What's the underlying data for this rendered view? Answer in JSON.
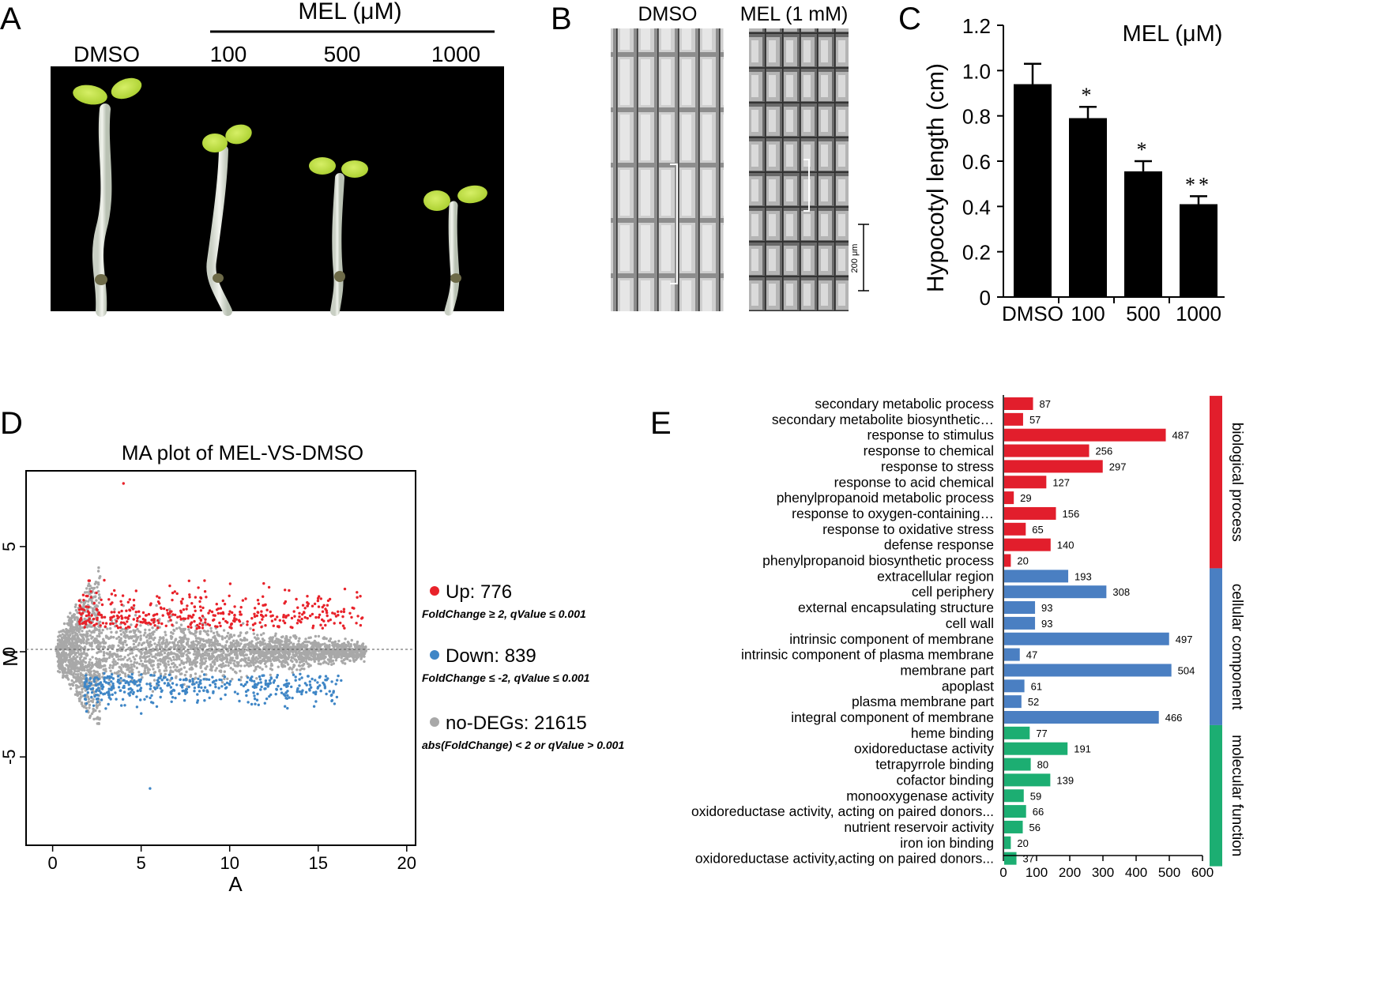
{
  "panel_a": {
    "letter": "A",
    "header": "MEL (μM)",
    "labels": [
      "DMSO",
      "100",
      "500",
      "1000"
    ]
  },
  "panel_b": {
    "letter": "B",
    "labels": [
      "DMSO",
      "MEL (1 mM)"
    ],
    "scale_label": "200 μm"
  },
  "panel_c": {
    "letter": "C",
    "legend": "MEL (μM)"
  },
  "panel_d": {
    "letter": "D",
    "legend": {
      "up": {
        "text": "Up: 776",
        "criteria": "FoldChange ≥ 2, qValue ≤ 0.001",
        "color": "#e8222a"
      },
      "down": {
        "text": "Down: 839",
        "criteria": "FoldChange ≤ -2, qValue ≤ 0.001",
        "color": "#3f86c6"
      },
      "none": {
        "text": "no-DEGs: 21615",
        "criteria": "abs(FoldChange) < 2 or qValue > 0.001",
        "color": "#a8a8a8"
      }
    }
  },
  "panel_e": {
    "letter": "E",
    "group_labels": [
      "biological process",
      "cellular component",
      "molecular function"
    ]
  },
  "chart_data": [
    {
      "type": "bar",
      "id": "C",
      "title": "MEL (μM)",
      "xlabel": "",
      "ylabel": "Hypocotyl length (cm)",
      "categories": [
        "DMSO",
        "100",
        "500",
        "1000"
      ],
      "values": [
        0.94,
        0.79,
        0.555,
        0.41
      ],
      "errors": [
        0.09,
        0.05,
        0.045,
        0.035
      ],
      "significance": [
        "",
        "*",
        "*",
        "**"
      ],
      "ylim": [
        0,
        1.2
      ],
      "yticks": [
        "0",
        "0.2",
        "0.4",
        "0.6",
        "0.8",
        "1.0",
        "1.2"
      ],
      "bar_color": "#000000"
    },
    {
      "type": "scatter",
      "id": "D",
      "title": "MA plot of MEL-VS-DMSO",
      "xlabel": "A",
      "ylabel": "M",
      "xlim": [
        -1.5,
        20.5
      ],
      "ylim": [
        -9.2,
        8.6
      ],
      "xticks": [
        "0",
        "5",
        "10",
        "15",
        "20"
      ],
      "yticks": [
        "-5",
        "0",
        "5"
      ],
      "series": [
        {
          "name": "Up",
          "count": 776,
          "color": "#e8222a"
        },
        {
          "name": "Down",
          "count": 839,
          "color": "#3f86c6"
        },
        {
          "name": "no-DEGs",
          "count": 21615,
          "color": "#a8a8a8"
        }
      ]
    },
    {
      "type": "bar",
      "id": "E",
      "orientation": "horizontal",
      "xlim": [
        0,
        600
      ],
      "xticks": [
        "0",
        "100",
        "200",
        "300",
        "400",
        "500",
        "600"
      ],
      "categories": [
        "secondary metabolic process",
        "secondary metabolite biosynthetic…",
        "response to stimulus",
        "response to chemical",
        "response to stress",
        "response to acid chemical",
        "phenylpropanoid metabolic process",
        "response to oxygen-containing…",
        "response to oxidative stress",
        "defense response",
        "phenylpropanoid biosynthetic process",
        "extracellular region",
        "cell periphery",
        "external encapsulating structure",
        "cell wall",
        "intrinsic component of membrane",
        "intrinsic component of plasma membrane",
        "membrane part",
        "apoplast",
        "plasma membrane part",
        "integral component of membrane",
        "heme  binding",
        "oxidoreductase activity",
        "tetrapyrrole  binding",
        "cofactor  binding",
        "monooxygenase activity",
        "oxidoreductase activity,   acting  on  paired donors...",
        "nutrient  reservoir  activity",
        "iron  ion  binding",
        "oxidoreductase activity,acting  on  paired donors..."
      ],
      "values": [
        87,
        57,
        487,
        256,
        297,
        127,
        29,
        156,
        65,
        140,
        20,
        193,
        308,
        93,
        93,
        497,
        47,
        504,
        61,
        52,
        466,
        77,
        191,
        80,
        139,
        59,
        66,
        56,
        20,
        37
      ],
      "groups": [
        {
          "name": "biological process",
          "start": 0,
          "end": 10,
          "color": "#e21e2c"
        },
        {
          "name": "cellular component",
          "start": 11,
          "end": 20,
          "color": "#4a7fc2"
        },
        {
          "name": "molecular function",
          "start": 21,
          "end": 29,
          "color": "#1cae72"
        }
      ]
    }
  ]
}
